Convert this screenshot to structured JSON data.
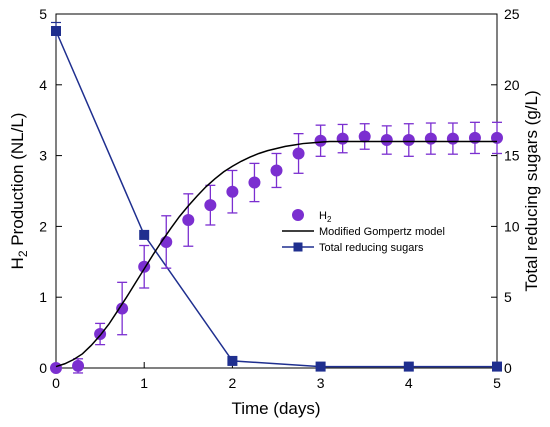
{
  "chart_data": {
    "type": "line",
    "xlabel": "Time (days)",
    "ylabel_left": {
      "main": "H",
      "sub": "2",
      "rest": " Production (NL/L)"
    },
    "ylabel_right": "Total reducing sugars (g/L)",
    "xlim": [
      0,
      5
    ],
    "ylim_left": [
      0,
      5
    ],
    "ylim_right": [
      0,
      25
    ],
    "x_ticks": [
      0,
      1,
      2,
      3,
      4,
      5
    ],
    "y_left_ticks": [
      0,
      1,
      2,
      3,
      4,
      5
    ],
    "y_right_ticks": [
      0,
      5,
      10,
      15,
      20,
      25
    ],
    "legend": {
      "placement": "center-right",
      "h2": {
        "main": "H",
        "sub": "2"
      },
      "model": "Modified Gompertz model",
      "sugars": "Total reducing sugars"
    },
    "series": [
      {
        "name": "H2",
        "axis": "left",
        "color": "#7B2FD0",
        "marker": "circle",
        "x": [
          0,
          0.25,
          0.5,
          0.75,
          1.0,
          1.25,
          1.5,
          1.75,
          2.0,
          2.25,
          2.5,
          2.75,
          3.0,
          3.25,
          3.5,
          3.75,
          4.0,
          4.25,
          4.5,
          4.75,
          5.0
        ],
        "y": [
          0.0,
          0.03,
          0.48,
          0.84,
          1.43,
          1.78,
          2.09,
          2.3,
          2.49,
          2.62,
          2.79,
          3.03,
          3.21,
          3.24,
          3.27,
          3.22,
          3.22,
          3.24,
          3.24,
          3.25,
          3.25
        ],
        "err": [
          0.02,
          0.1,
          0.15,
          0.37,
          0.3,
          0.37,
          0.37,
          0.28,
          0.3,
          0.27,
          0.24,
          0.28,
          0.22,
          0.2,
          0.18,
          0.2,
          0.23,
          0.22,
          0.22,
          0.22,
          0.22
        ]
      },
      {
        "name": "Modified Gompertz model",
        "axis": "left",
        "color": "#000000",
        "marker": "none",
        "x": [
          0,
          0.1,
          0.2,
          0.3,
          0.4,
          0.5,
          0.6,
          0.7,
          0.8,
          0.9,
          1.0,
          1.1,
          1.2,
          1.3,
          1.4,
          1.5,
          1.6,
          1.7,
          1.8,
          1.9,
          2.0,
          2.1,
          2.2,
          2.3,
          2.4,
          2.5,
          2.6,
          2.7,
          2.8,
          2.9,
          3.0,
          3.1,
          3.2,
          3.3,
          3.4,
          3.5,
          3.6,
          3.7,
          3.8,
          3.9,
          4.0,
          4.25,
          4.5,
          4.75,
          5.0
        ],
        "y": [
          0.02,
          0.06,
          0.12,
          0.2,
          0.32,
          0.46,
          0.62,
          0.81,
          1.0,
          1.2,
          1.4,
          1.6,
          1.79,
          1.97,
          2.14,
          2.29,
          2.43,
          2.56,
          2.67,
          2.77,
          2.85,
          2.92,
          2.98,
          3.03,
          3.07,
          3.1,
          3.13,
          3.15,
          3.17,
          3.18,
          3.19,
          3.2,
          3.2,
          3.2,
          3.2,
          3.2,
          3.2,
          3.2,
          3.2,
          3.2,
          3.2,
          3.2,
          3.2,
          3.2,
          3.2
        ]
      },
      {
        "name": "Total reducing sugars",
        "axis": "right",
        "color": "#1F2F8F",
        "marker": "square",
        "x": [
          0,
          1,
          2,
          3,
          4,
          5
        ],
        "y": [
          23.8,
          9.4,
          0.5,
          0.1,
          0.1,
          0.1
        ],
        "err": [
          0.6,
          0,
          0,
          0,
          0,
          0
        ]
      }
    ]
  }
}
